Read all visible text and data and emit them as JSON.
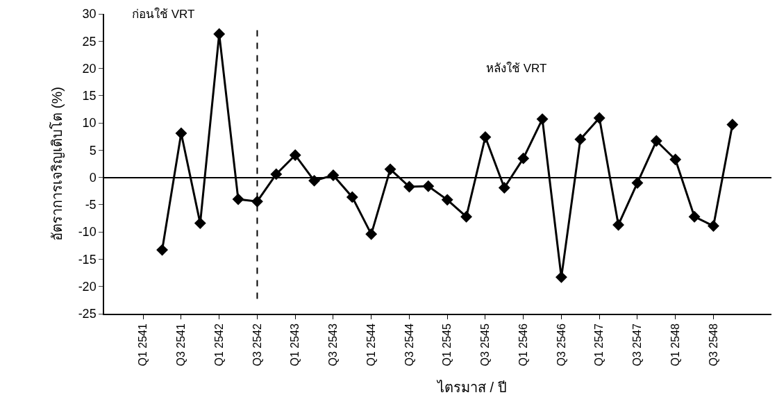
{
  "chart_data": {
    "type": "line",
    "xlabel": "ไตรมาส / ปี",
    "ylabel": "อัตราการเจริญเติบโต (%)",
    "categories": [
      "Q1 2541",
      null,
      "Q3 2541",
      null,
      "Q1 2542",
      null,
      "Q3 2542",
      null,
      "Q1 2543",
      null,
      "Q3 2543",
      null,
      "Q1 2544",
      null,
      "Q3 2544",
      null,
      "Q1 2545",
      null,
      "Q3 2545",
      null,
      "Q1 2546",
      null,
      "Q3 2546",
      null,
      "Q1 2547",
      null,
      "Q3 2547",
      null,
      "Q1 2548",
      null,
      "Q3 2548",
      null
    ],
    "series": [
      {
        "color": "#000000",
        "values": [
          null,
          -13.3,
          8.1,
          -8.4,
          26.3,
          -4.0,
          -4.4,
          0.6,
          4.1,
          -0.6,
          0.4,
          -3.6,
          -10.4,
          1.5,
          -1.7,
          -1.6,
          -4.1,
          -7.2,
          7.4,
          -1.9,
          3.5,
          10.7,
          -18.3,
          7.0,
          10.9,
          -8.7,
          -1.0,
          6.7,
          3.3,
          -7.2,
          -8.9,
          9.7
        ]
      }
    ],
    "ylim": [
      -25,
      30
    ],
    "yticks": [
      -25,
      -20,
      -15,
      -10,
      -5,
      0,
      5,
      10,
      15,
      20,
      25,
      30
    ],
    "ref_lines": [
      {
        "axis": "x",
        "value": "Q3 2542",
        "line_style": "dashed",
        "color": "#000000"
      }
    ],
    "annotations": [
      "ก่อนใช้ VRT",
      "หลังใช้ VRT"
    ],
    "grid": false,
    "legend": false,
    "marker": "diamond",
    "line_style": "solid"
  }
}
